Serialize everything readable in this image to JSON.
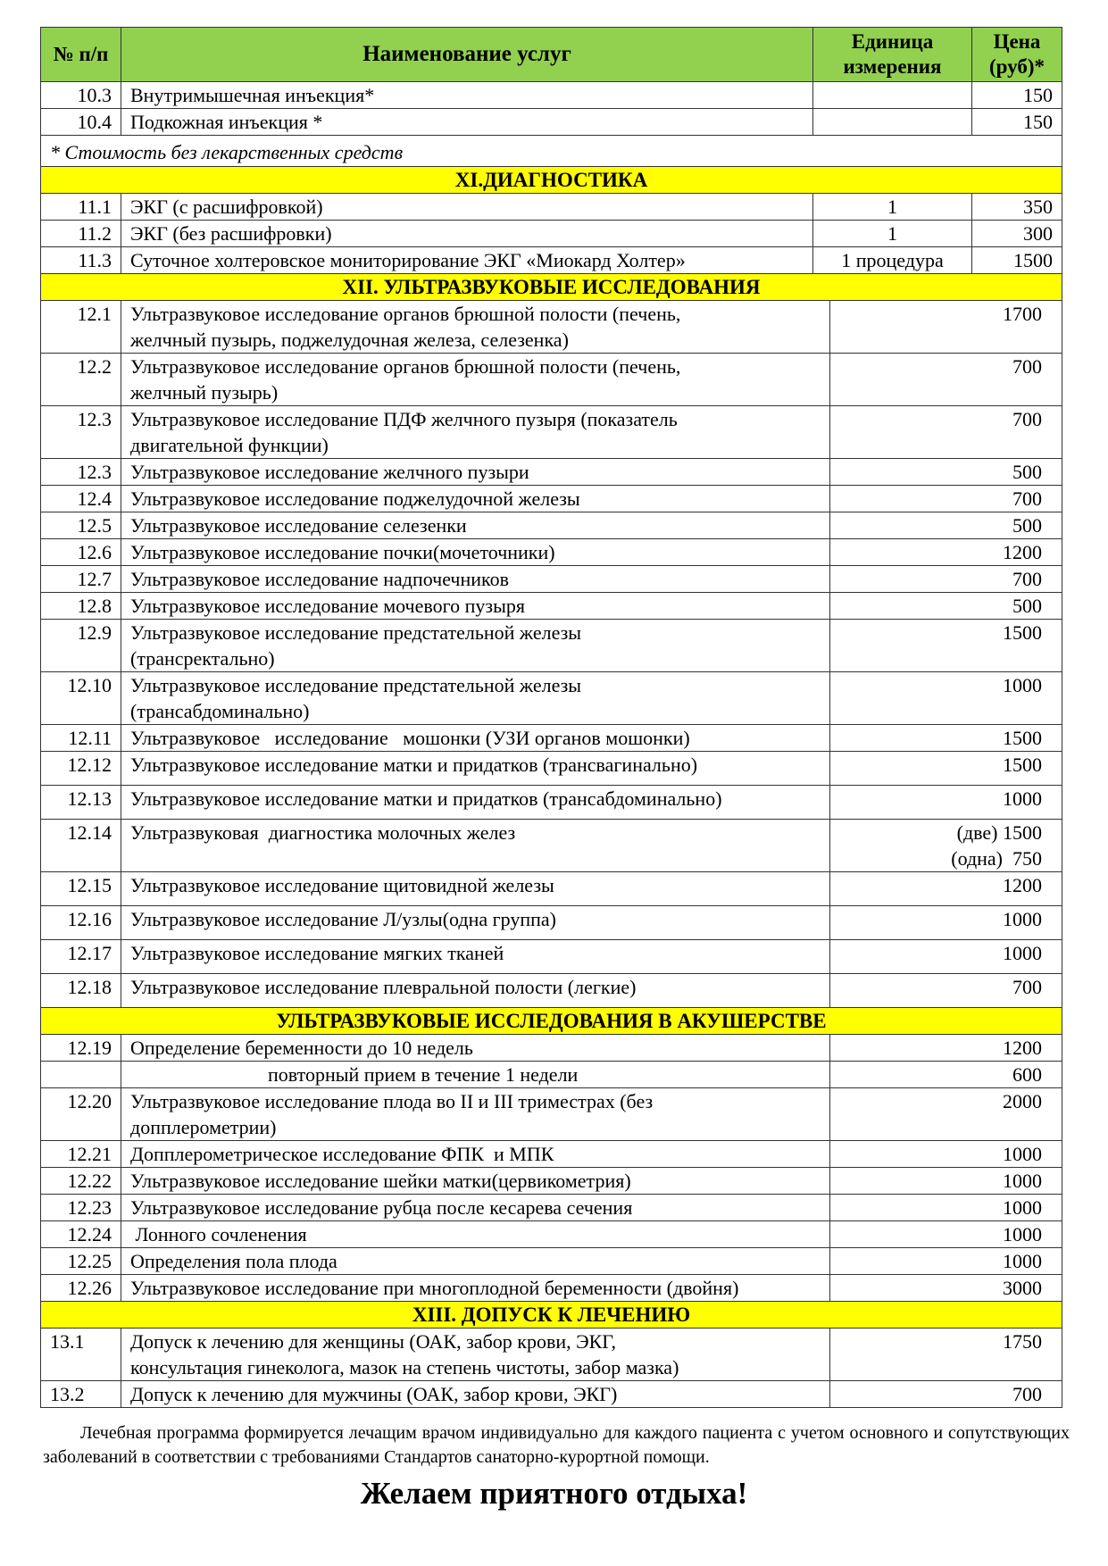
{
  "header": {
    "num": "№ п/п",
    "name": "Наименование услуг",
    "unit": "Единица измерения",
    "price": "Цена (руб)*"
  },
  "rows": [
    {
      "type": "item",
      "section": 1,
      "num": "10.3",
      "name": [
        "Внутримышечная инъекция*"
      ],
      "unit": "",
      "price": [
        "150"
      ]
    },
    {
      "type": "item",
      "section": 1,
      "num": "10.4",
      "name": [
        "Подкожная инъекция *"
      ],
      "unit": "",
      "price": [
        "150"
      ]
    },
    {
      "type": "note",
      "text": "* Стоимость без лекарственных средств"
    },
    {
      "type": "heading",
      "text": "XI.ДИАГНОСТИКА"
    },
    {
      "type": "item",
      "section": 1,
      "num": "11.1",
      "name": [
        "ЭКГ (с расшифровкой)"
      ],
      "unit": "1",
      "price": [
        "350"
      ]
    },
    {
      "type": "item",
      "section": 1,
      "num": "11.2",
      "name": [
        "ЭКГ (без расшифровки)"
      ],
      "unit": "1",
      "price": [
        "300"
      ]
    },
    {
      "type": "item",
      "section": 1,
      "num": "11.3",
      "name": [
        "Суточное холтеровское мониторирование ЭКГ «Миокард Холтер»"
      ],
      "unit": "1 процедура",
      "price": [
        "1500"
      ]
    },
    {
      "type": "heading",
      "text": "XII. УЛЬТРАЗВУКОВЫЕ ИССЛЕДОВАНИЯ"
    },
    {
      "type": "item",
      "section": 2,
      "num": "12.1",
      "name": [
        "Ультразвуковое исследование органов брюшной полости (печень,",
        "желчный пузырь, поджелудочная железа, селезенка)"
      ],
      "price": [
        "1700"
      ]
    },
    {
      "type": "item",
      "section": 2,
      "num": "12.2",
      "name": [
        "Ультразвуковое исследование органов брюшной полости (печень,",
        "желчный пузырь)"
      ],
      "price": [
        "700"
      ]
    },
    {
      "type": "item",
      "section": 2,
      "num": "12.3",
      "name": [
        "Ультразвуковое исследование ПДФ желчного пузыря (показатель",
        "двигательной функции)"
      ],
      "price": [
        "700"
      ]
    },
    {
      "type": "item",
      "section": 2,
      "num": "12.3",
      "name": [
        "Ультразвуковое исследование желчного пузыри"
      ],
      "price": [
        "500"
      ]
    },
    {
      "type": "item",
      "section": 2,
      "num": "12.4",
      "name": [
        "Ультразвуковое исследование поджелудочной железы"
      ],
      "price": [
        "700"
      ]
    },
    {
      "type": "item",
      "section": 2,
      "num": "12.5",
      "name": [
        "Ультразвуковое исследование селезенки"
      ],
      "price": [
        "500"
      ]
    },
    {
      "type": "item",
      "section": 2,
      "num": "12.6",
      "name": [
        "Ультразвуковое исследование почки(мочеточники)"
      ],
      "price": [
        "1200"
      ]
    },
    {
      "type": "item",
      "section": 2,
      "num": "12.7",
      "name": [
        "Ультразвуковое исследование надпочечников"
      ],
      "price": [
        "700"
      ]
    },
    {
      "type": "item",
      "section": 2,
      "num": "12.8",
      "name": [
        "Ультразвуковое исследование мочевого пузыря"
      ],
      "price": [
        "500"
      ]
    },
    {
      "type": "item",
      "section": 2,
      "num": "12.9",
      "name": [
        "Ультразвуковое исследование предстательной железы",
        "(трансректально)"
      ],
      "price": [
        "1500"
      ]
    },
    {
      "type": "item",
      "section": 2,
      "num": "12.10",
      "name": [
        "Ультразвуковое исследование предстательной железы",
        "(трансабдоминально)"
      ],
      "price": [
        "1000"
      ]
    },
    {
      "type": "item",
      "section": 2,
      "num": "12.11",
      "name": [
        "Ультразвуковое   исследование   мошонки (УЗИ органов мошонки)"
      ],
      "price": [
        "1500"
      ]
    },
    {
      "type": "item",
      "section": 2,
      "num": "12.12",
      "name": [
        "Ультразвуковое исследование матки и придатков (трансвагинально)"
      ],
      "price": [
        "1500"
      ]
    },
    {
      "type": "item",
      "section": 2,
      "num": "12.13",
      "name": [
        "Ультразвуковое исследование матки и придатков (трансабдоминально)"
      ],
      "price": [
        "1000"
      ]
    },
    {
      "type": "item",
      "section": 2,
      "num": "12.14",
      "name": [
        "Ультразвуковая  диагностика молочных желез"
      ],
      "price": [
        "(две) 1500",
        "(одна)  750"
      ]
    },
    {
      "type": "item",
      "section": 2,
      "num": "12.15",
      "name": [
        "Ультразвуковое исследование щитовидной железы"
      ],
      "price": [
        "1200"
      ]
    },
    {
      "type": "item",
      "section": 2,
      "num": "12.16",
      "name": [
        "Ультразвуковое исследование Л/узлы(одна группа)"
      ],
      "price": [
        "1000"
      ]
    },
    {
      "type": "item",
      "section": 2,
      "num": "12.17",
      "name": [
        "Ультразвуковое исследование мягких тканей"
      ],
      "price": [
        "1000"
      ]
    },
    {
      "type": "item",
      "section": 2,
      "num": "12.18",
      "name": [
        "Ультразвуковое исследование плевральной полости (легкие)"
      ],
      "price": [
        "700"
      ]
    },
    {
      "type": "heading",
      "text": "УЛЬТРАЗВУКОВЫЕ ИССЛЕДОВАНИЯ В АКУШЕРСТВЕ"
    },
    {
      "type": "item",
      "section": 2,
      "num": "12.19",
      "name": [
        "Определение беременности до 10 недель"
      ],
      "price": [
        "1200"
      ]
    },
    {
      "type": "item",
      "section": 2,
      "num": "",
      "name": [
        "повторный прием в течение 1 недели"
      ],
      "price": [
        "600"
      ]
    },
    {
      "type": "item",
      "section": 2,
      "num": "12.20",
      "name": [
        "Ультразвуковое исследование плода во II и III триместрах (без",
        "допплерометрии)"
      ],
      "price": [
        "2000"
      ]
    },
    {
      "type": "item",
      "section": 2,
      "num": "12.21",
      "name": [
        "Допплерометрическое исследование ФПК  и МПК"
      ],
      "price": [
        "1000"
      ]
    },
    {
      "type": "item",
      "section": 2,
      "num": "12.22",
      "name": [
        "Ультразвуковое исследование шейки матки(цервикометрия)"
      ],
      "price": [
        "1000"
      ]
    },
    {
      "type": "item",
      "section": 2,
      "num": "12.23",
      "name": [
        "Ультразвуковое исследование рубца после кесарева сечения"
      ],
      "price": [
        "1000"
      ]
    },
    {
      "type": "item",
      "section": 2,
      "num": "12.24",
      "name": [
        " Лонного сочленения"
      ],
      "price": [
        "1000"
      ]
    },
    {
      "type": "item",
      "section": 2,
      "num": "12.25",
      "name": [
        "Определения пола плода"
      ],
      "price": [
        "1000"
      ]
    },
    {
      "type": "item",
      "section": 2,
      "num": "12.26",
      "name": [
        "Ультразвуковое исследование при многоплодной беременности (двойня)"
      ],
      "price": [
        "3000"
      ]
    },
    {
      "type": "heading",
      "text": "XIII. ДОПУСК К ЛЕЧЕНИЮ"
    },
    {
      "type": "item",
      "section": 2,
      "num": "13.1",
      "name": [
        "Допуск к лечению для женщины (ОАК, забор крови, ЭКГ,",
        "консультация гинеколога, мазок на степень чистоты, забор мазка)"
      ],
      "price": [
        "1750"
      ]
    },
    {
      "type": "item",
      "section": 2,
      "num": "13.2",
      "name": [
        "Допуск к лечению для мужчины (ОАК, забор крови, ЭКГ)"
      ],
      "price": [
        "700"
      ]
    }
  ],
  "footer": "Лечебная программа формируется лечащим врачом индивидуально для каждого пациента с учетом основного и сопутствующих заболеваний в соответствии с требованиями Стандартов санаторно-курортной помощи.",
  "wish": "Желаем приятного отдыха!",
  "colors": {
    "header_bg": "#92d050",
    "section_bg": "#ffff00"
  }
}
